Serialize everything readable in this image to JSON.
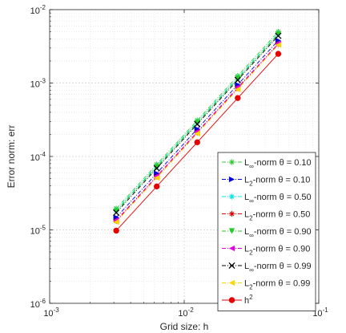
{
  "chart_data": {
    "type": "line",
    "title": "",
    "xlabel": "Grid size: h",
    "ylabel": "Error norm: err",
    "xscale": "log",
    "yscale": "log",
    "xlim": [
      0.001,
      0.1
    ],
    "ylim": [
      1e-06,
      0.01
    ],
    "grid": true,
    "legend_position": "bottom-right",
    "x_ticks": [
      0.001,
      0.01,
      0.1
    ],
    "y_ticks": [
      1e-06,
      1e-05,
      0.0001,
      0.001,
      0.01
    ],
    "x_tick_labels": [
      {
        "base": "10",
        "exp": "-3"
      },
      {
        "base": "10",
        "exp": "-2"
      },
      {
        "base": "10",
        "exp": "-1"
      }
    ],
    "y_tick_labels": [
      {
        "base": "10",
        "exp": "-6"
      },
      {
        "base": "10",
        "exp": "-5"
      },
      {
        "base": "10",
        "exp": "-4"
      },
      {
        "base": "10",
        "exp": "-3"
      },
      {
        "base": "10",
        "exp": "-2"
      }
    ],
    "x": [
      0.003125,
      0.00625,
      0.0125,
      0.025,
      0.05
    ],
    "series": [
      {
        "label": {
          "main": "L",
          "sub": "∞",
          "rest": "-norm θ = 0.10"
        },
        "color": "#33cc33",
        "marker": "star",
        "dash": "dashdot",
        "values": [
          1.95e-05,
          7.8e-05,
          0.00031,
          0.00125,
          0.005
        ]
      },
      {
        "label": {
          "main": "L",
          "sub": "2",
          "rest": "-norm θ = 0.10"
        },
        "color": "#0000dd",
        "marker": "triangle-right",
        "dash": "dashdot",
        "values": [
          1.48e-05,
          5.9e-05,
          0.000237,
          0.00095,
          0.0038
        ]
      },
      {
        "label": {
          "main": "L",
          "sub": "∞",
          "rest": "-norm θ = 0.50"
        },
        "color": "#00e5e5",
        "marker": "star",
        "dash": "dashdot",
        "values": [
          1.85e-05,
          7.4e-05,
          0.000295,
          0.00118,
          0.0047
        ]
      },
      {
        "label": {
          "main": "L",
          "sub": "2",
          "rest": "-norm θ = 0.50"
        },
        "color": "#e60000",
        "marker": "star",
        "dash": "dashdot",
        "values": [
          1.32e-05,
          5.3e-05,
          0.000212,
          0.00085,
          0.0034
        ]
      },
      {
        "label": {
          "main": "L",
          "sub": "∞",
          "rest": "-norm θ = 0.90"
        },
        "color": "#22cc22",
        "marker": "triangle-down",
        "dash": "dashdot",
        "values": [
          1.8e-05,
          7.2e-05,
          0.000288,
          0.00115,
          0.0046
        ]
      },
      {
        "label": {
          "main": "L",
          "sub": "2",
          "rest": "-norm θ = 0.90"
        },
        "color": "#e600e6",
        "marker": "triangle-left",
        "dash": "dashdot",
        "values": [
          1.35e-05,
          5.4e-05,
          0.000216,
          0.00087,
          0.00345
        ]
      },
      {
        "label": {
          "main": "L",
          "sub": "∞",
          "rest": "-norm θ = 0.99"
        },
        "color": "#000000",
        "marker": "x",
        "dash": "dashdot",
        "values": [
          1.72e-05,
          6.9e-05,
          0.000276,
          0.0011,
          0.0044
        ]
      },
      {
        "label": {
          "main": "L",
          "sub": "2",
          "rest": "-norm θ = 0.99"
        },
        "color": "#ffd700",
        "marker": "triangle-left",
        "dash": "dashdot",
        "values": [
          1.28e-05,
          5.1e-05,
          0.000205,
          0.00082,
          0.0033
        ]
      },
      {
        "label": {
          "main": "h",
          "sup": "2",
          "rest": ""
        },
        "color": "#e60000",
        "marker": "circle",
        "dash": "solid",
        "values": [
          9.77e-06,
          3.91e-05,
          0.000156,
          0.000625,
          0.0025
        ]
      }
    ]
  }
}
